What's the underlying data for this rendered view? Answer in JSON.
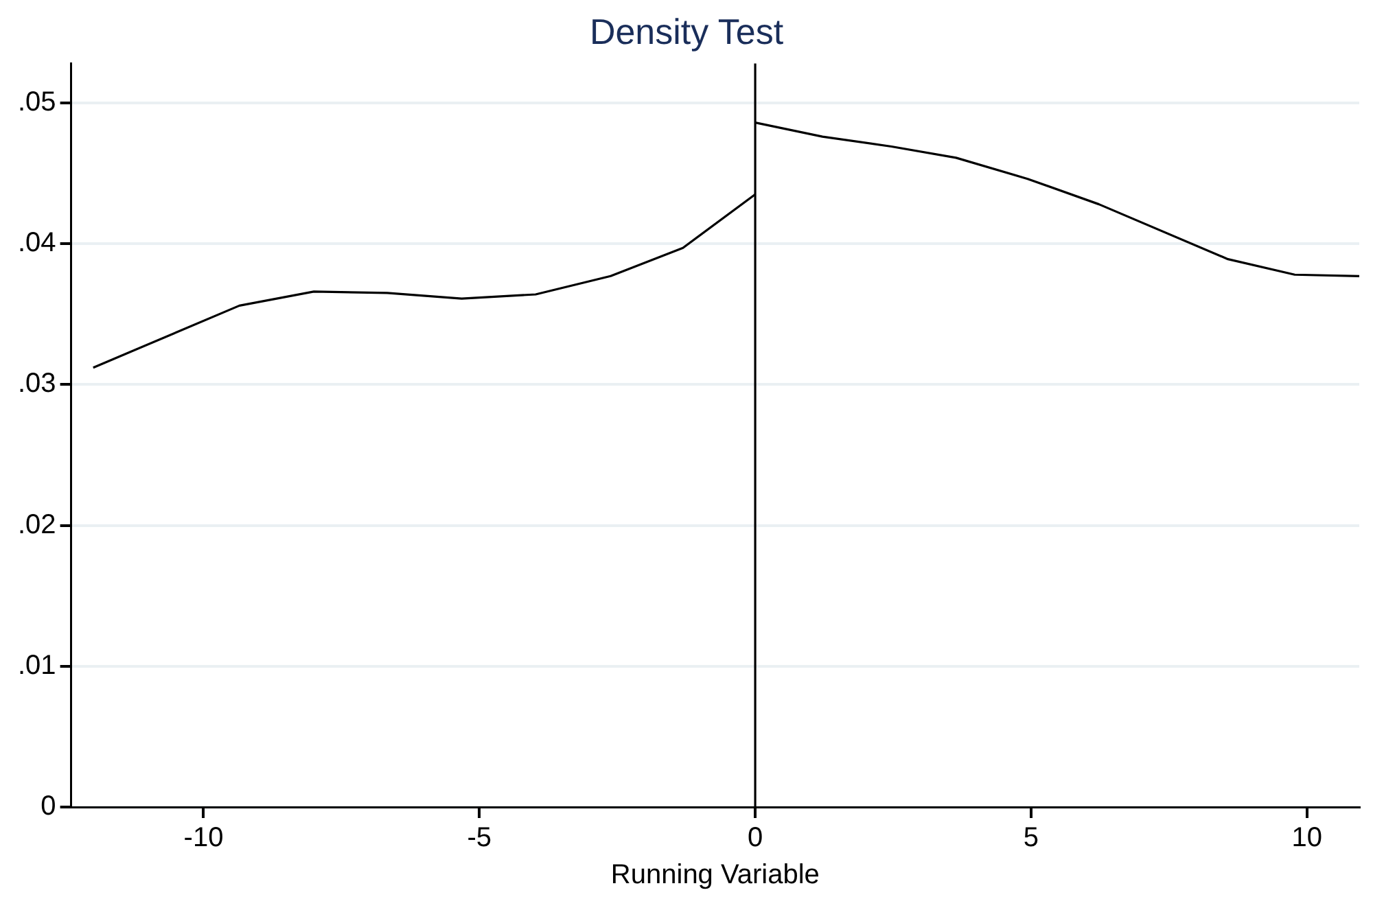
{
  "chart_data": {
    "type": "line",
    "title": "Density Test",
    "xlabel": "Running Variable",
    "series": [
      {
        "color": "#000000",
        "x": [
          -12,
          -9.35,
          -8,
          -6.67,
          -5.32,
          -3.98,
          -2.62,
          -1.31,
          0
        ],
        "values": [
          0.0312,
          0.0356,
          0.0366,
          0.0365,
          0.0361,
          0.0364,
          0.0377,
          0.0397,
          0.0435
        ]
      },
      {
        "color": "#000000",
        "x": [
          0,
          1.22,
          2.47,
          3.64,
          4.94,
          6.23,
          8.57,
          9.78,
          10.95
        ],
        "values": [
          0.0486,
          0.0476,
          0.0469,
          0.0461,
          0.0446,
          0.0428,
          0.0389,
          0.0378,
          0.0377
        ]
      }
    ],
    "xlim": [
      -12.4,
      10.95
    ],
    "xticks": [
      -10,
      -5,
      0,
      5,
      10
    ],
    "ylim": [
      0,
      0.0528
    ],
    "yticks": [
      {
        "value": 0,
        "label": "0"
      },
      {
        "value": 0.01,
        "label": ".01"
      },
      {
        "value": 0.02,
        "label": ".02"
      },
      {
        "value": 0.03,
        "label": ".03"
      },
      {
        "value": 0.04,
        "label": ".04"
      },
      {
        "value": 0.05,
        "label": ".05"
      }
    ],
    "ref_lines": [
      {
        "axis": "x",
        "value": 0,
        "color": "#000000"
      }
    ],
    "grid": "y",
    "marker": "none",
    "line_style": "solid",
    "legend": false
  }
}
